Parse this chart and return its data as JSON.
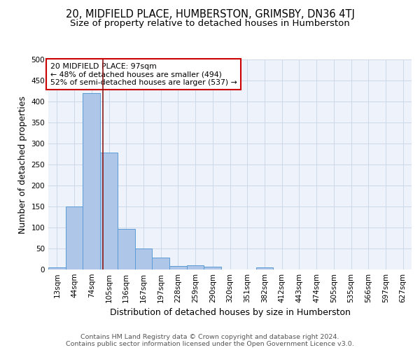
{
  "title_line1": "20, MIDFIELD PLACE, HUMBERSTON, GRIMSBY, DN36 4TJ",
  "title_line2": "Size of property relative to detached houses in Humberston",
  "xlabel": "Distribution of detached houses by size in Humberston",
  "ylabel": "Number of detached properties",
  "bin_labels": [
    "13sqm",
    "44sqm",
    "74sqm",
    "105sqm",
    "136sqm",
    "167sqm",
    "197sqm",
    "228sqm",
    "259sqm",
    "290sqm",
    "320sqm",
    "351sqm",
    "382sqm",
    "412sqm",
    "443sqm",
    "474sqm",
    "505sqm",
    "535sqm",
    "566sqm",
    "597sqm",
    "627sqm"
  ],
  "bar_values": [
    5,
    150,
    420,
    278,
    96,
    50,
    29,
    8,
    10,
    7,
    0,
    0,
    5,
    0,
    0,
    0,
    0,
    0,
    0,
    0,
    0
  ],
  "bar_color": "#aec6e8",
  "bar_edge_color": "#5b9bd5",
  "grid_color": "#ccd8e8",
  "background_color": "#eef2fa",
  "vline_x_index": 2.65,
  "vline_color": "#8b1a1a",
  "annotation_text": "20 MIDFIELD PLACE: 97sqm\n← 48% of detached houses are smaller (494)\n52% of semi-detached houses are larger (537) →",
  "annotation_box_color": "white",
  "annotation_box_edge": "#cc0000",
  "ylim": [
    0,
    500
  ],
  "yticks": [
    0,
    50,
    100,
    150,
    200,
    250,
    300,
    350,
    400,
    450,
    500
  ],
  "footer_text": "Contains HM Land Registry data © Crown copyright and database right 2024.\nContains public sector information licensed under the Open Government Licence v3.0.",
  "title_fontsize": 10.5,
  "subtitle_fontsize": 9.5,
  "axis_label_fontsize": 9,
  "tick_fontsize": 7.5,
  "annotation_fontsize": 7.8,
  "footer_fontsize": 6.8
}
